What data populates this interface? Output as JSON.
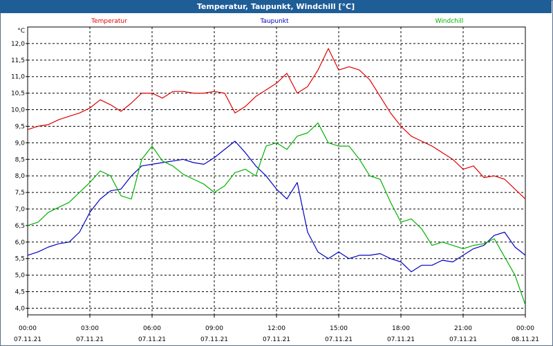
{
  "window": {
    "title": "Temperatur, Taupunkt, Windchill [°C]"
  },
  "chart_data": {
    "type": "line",
    "title": "Temperatur, Taupunkt, Windchill [°C]",
    "ylabel": "°C",
    "ylim": [
      3.8,
      12.5
    ],
    "y_ticks": [
      "4,0",
      "4,5",
      "5,0",
      "5,5",
      "6,0",
      "6,5",
      "7,0",
      "7,5",
      "8,0",
      "8,5",
      "9,0",
      "9,5",
      "10,0",
      "10,5",
      "11,0",
      "11,5",
      "12,0"
    ],
    "x_ticks": [
      {
        "time": "00:00",
        "date": "07.11.21"
      },
      {
        "time": "03:00",
        "date": "07.11.21"
      },
      {
        "time": "06:00",
        "date": "07.11.21"
      },
      {
        "time": "09:00",
        "date": "07.11.21"
      },
      {
        "time": "12:00",
        "date": "07.11.21"
      },
      {
        "time": "15:00",
        "date": "07.11.21"
      },
      {
        "time": "18:00",
        "date": "07.11.21"
      },
      {
        "time": "21:00",
        "date": "07.11.21"
      },
      {
        "time": "00:00",
        "date": "08.11.21"
      }
    ],
    "grid": true,
    "x_hours": [
      0,
      0.5,
      1,
      1.5,
      2,
      2.5,
      3,
      3.5,
      4,
      4.5,
      5,
      5.5,
      6,
      6.5,
      7,
      7.5,
      8,
      8.5,
      9,
      9.5,
      10,
      10.5,
      11,
      11.5,
      12,
      12.5,
      13,
      13.5,
      14,
      14.5,
      15,
      15.5,
      16,
      16.5,
      17,
      17.5,
      18,
      18.5,
      19,
      19.5,
      20,
      20.5,
      21,
      21.5,
      22,
      22.5,
      23,
      23.5,
      24
    ],
    "series": [
      {
        "name": "Temperatur",
        "color": "#e00000",
        "values": [
          9.4,
          9.5,
          9.55,
          9.7,
          9.8,
          9.9,
          10.05,
          10.3,
          10.15,
          9.95,
          10.2,
          10.5,
          10.5,
          10.35,
          10.55,
          10.55,
          10.5,
          10.5,
          10.55,
          10.5,
          9.9,
          10.1,
          10.4,
          10.6,
          10.8,
          11.1,
          10.5,
          10.7,
          11.2,
          11.85,
          11.2,
          11.3,
          11.2,
          10.9,
          10.4,
          9.9,
          9.5,
          9.2,
          9.05,
          8.9,
          8.7,
          8.5,
          8.2,
          8.3,
          7.95,
          8.0,
          7.9,
          7.6,
          7.3
        ]
      },
      {
        "name": "Taupunkt",
        "color": "#0000c0",
        "values": [
          5.6,
          5.7,
          5.85,
          5.95,
          6.0,
          6.3,
          6.9,
          7.3,
          7.55,
          7.6,
          8.0,
          8.3,
          8.35,
          8.4,
          8.45,
          8.5,
          8.4,
          8.35,
          8.55,
          8.8,
          9.05,
          8.7,
          8.3,
          8.0,
          7.6,
          7.3,
          7.8,
          6.3,
          5.7,
          5.5,
          5.7,
          5.5,
          5.6,
          5.6,
          5.65,
          5.5,
          5.4,
          5.1,
          5.3,
          5.3,
          5.45,
          5.4,
          5.6,
          5.8,
          5.9,
          6.2,
          6.3,
          5.85,
          5.6
        ]
      },
      {
        "name": "Windchill",
        "color": "#00b000",
        "values": [
          6.5,
          6.6,
          6.9,
          7.05,
          7.2,
          7.5,
          7.8,
          8.15,
          8.0,
          7.4,
          7.3,
          8.5,
          8.9,
          8.45,
          8.3,
          8.05,
          7.9,
          7.75,
          7.5,
          7.7,
          8.1,
          8.2,
          8.0,
          8.9,
          9.0,
          8.8,
          9.2,
          9.3,
          9.6,
          9.0,
          8.9,
          8.9,
          8.5,
          8.0,
          7.9,
          7.2,
          6.6,
          6.7,
          6.4,
          5.9,
          6.0,
          5.9,
          5.8,
          5.9,
          5.95,
          6.1,
          5.55,
          5.0,
          4.1
        ]
      }
    ]
  }
}
